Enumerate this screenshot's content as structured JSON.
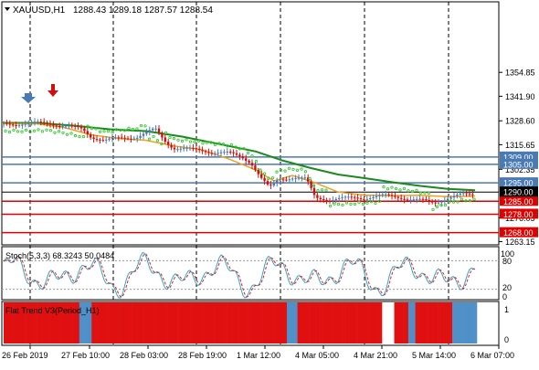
{
  "header": {
    "symbol_text": "XAUUSD,H1",
    "ohlc_text": "1288.43 1289.18 1287.57 1288.54"
  },
  "colors": {
    "background": "#ffffff",
    "grid": "#000000",
    "hline_blue": "#4a7ab5",
    "hline_red": "#e00000",
    "ma_green": "#1a8a1a",
    "ma_orange": "#f0a020",
    "psar_green": "#33cc33",
    "candle_bull": "#4a7ab5",
    "candle_bear": "#d01010",
    "stoch_main": "#2fa8c8",
    "stoch_signal": "#e02020",
    "trend_red": "#e01010",
    "trend_blue": "#5090c8",
    "current_price_bg": "#000000",
    "red_label_bg": "#e00000",
    "blue_label_bg": "#4a7ab5"
  },
  "main_panel": {
    "price_axis_labels": [
      "1354.85",
      "1341.90",
      "1328.60",
      "1315.65",
      "1302.35",
      "1276.05",
      "1263.15"
    ],
    "current_price": "1290.00",
    "level_lines": [
      {
        "label": "1309.00",
        "price": 1309.0,
        "color": "blue"
      },
      {
        "label": "1305.00",
        "price": 1305.0,
        "color": "blue"
      },
      {
        "label": "1295.00",
        "price": 1295.0,
        "color": "blue"
      },
      {
        "label": "1285.00",
        "price": 1285.0,
        "color": "red"
      },
      {
        "label": "1278.00",
        "price": 1278.0,
        "color": "red"
      },
      {
        "label": "1268.00",
        "price": 1268.0,
        "color": "red"
      }
    ]
  },
  "stoch_panel": {
    "label": "Stoch(5,3,3) 68.3243 50.0484",
    "axis_labels": [
      "100",
      "80",
      "20",
      "0"
    ]
  },
  "trend_panel": {
    "label": "Flat Trend V3(Period_H1)",
    "axis_labels": [
      "1",
      "0"
    ]
  },
  "time_axis_labels": [
    "26 Feb 2019",
    "27 Feb 10:00",
    "28 Feb 03:00",
    "28 Feb 19:00",
    "1 Mar 12:00",
    "4 Mar 05:00",
    "4 Mar 21:00",
    "5 Mar 14:00",
    "6 Mar 07:00"
  ],
  "trend_colors": "RRRRRRRRRRRRRRRRRRRRRRRRRRRRRRRRRRRRRRRRRRRBBBBBBBRRRRRRRRRRRRRRRRRRRRRRRRRRRRRRRRRRRRRRRRRRRRRRRRRRRRRRRRRRRRRRRRRRRRRRRRRRRRRRRRRRRRRRRRRRRRRRRRRRRRRRRRRRRRRRRBBBBBBRRRRRRRRRRRRRRRRRRRRRRRRRRRRRRRRRRRRRRRRRRRRRRRRWWWWWWWRRRRRRRRBBBBRRRRRRRRRRRRRRRRRRRRRBBBBBBBBBBBBBB"
}
